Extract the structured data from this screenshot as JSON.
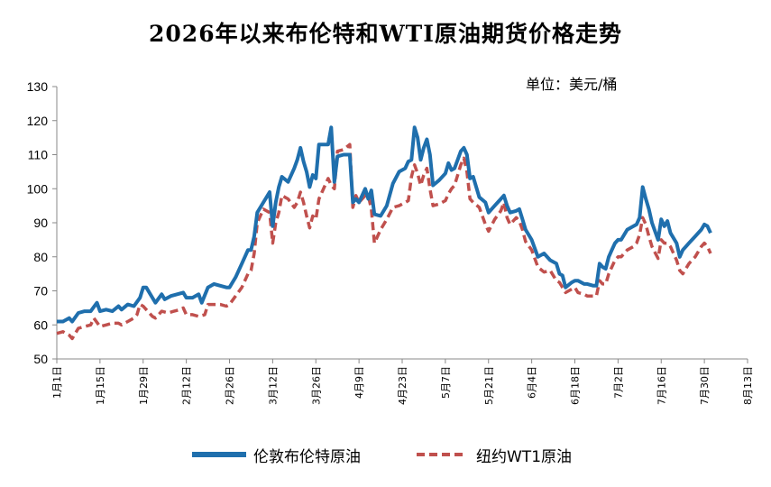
{
  "chart_data": {
    "type": "line",
    "title": "2026年以来布伦特和WTI原油期货价格走势",
    "unit": "单位：美元/桶",
    "ylim": [
      50,
      130
    ],
    "y_ticks": [
      50,
      60,
      70,
      80,
      90,
      100,
      110,
      120,
      130
    ],
    "x_ticks": [
      "1月1日",
      "1月15日",
      "1月29日",
      "2月12日",
      "2月26日",
      "3月12日",
      "3月26日",
      "4月9日",
      "4月23日",
      "5月7日",
      "5月21日",
      "6月4日",
      "6月18日",
      "7月2日",
      "7月16日",
      "7月30日",
      "8月13日"
    ],
    "x_tick_days": [
      0,
      14,
      28,
      42,
      56,
      70,
      84,
      98,
      112,
      126,
      140,
      154,
      168,
      182,
      196,
      210,
      224
    ],
    "x_max_day": 224,
    "legend_position": "bottom",
    "grid": false,
    "series": [
      {
        "name": "伦敦布伦特原油",
        "color": "#1f6fad",
        "style": "solid",
        "points": [
          [
            0,
            61
          ],
          [
            2,
            61
          ],
          [
            4,
            62
          ],
          [
            5,
            61
          ],
          [
            7,
            63.5
          ],
          [
            9,
            64
          ],
          [
            11,
            64
          ],
          [
            13,
            66.5
          ],
          [
            14,
            64
          ],
          [
            16,
            64.5
          ],
          [
            18,
            64
          ],
          [
            20,
            65.5
          ],
          [
            21,
            64.5
          ],
          [
            23,
            66
          ],
          [
            25,
            65.5
          ],
          [
            27,
            68
          ],
          [
            28,
            71
          ],
          [
            29,
            71
          ],
          [
            31,
            68
          ],
          [
            32,
            66.5
          ],
          [
            34,
            69
          ],
          [
            35,
            67.5
          ],
          [
            37,
            68.5
          ],
          [
            39,
            69
          ],
          [
            41,
            69.5
          ],
          [
            42,
            68
          ],
          [
            44,
            68
          ],
          [
            46,
            69
          ],
          [
            47,
            66.5
          ],
          [
            49,
            71
          ],
          [
            51,
            72
          ],
          [
            53,
            71.5
          ],
          [
            55,
            71
          ],
          [
            56,
            71
          ],
          [
            58,
            74
          ],
          [
            60,
            78
          ],
          [
            62,
            82
          ],
          [
            63,
            82
          ],
          [
            64,
            86
          ],
          [
            65,
            93
          ],
          [
            67,
            96
          ],
          [
            69,
            99
          ],
          [
            70,
            89
          ],
          [
            71,
            96
          ],
          [
            72,
            100.5
          ],
          [
            73,
            103.5
          ],
          [
            75,
            102
          ],
          [
            77,
            106
          ],
          [
            78,
            108.5
          ],
          [
            79,
            112
          ],
          [
            80,
            108
          ],
          [
            81,
            105
          ],
          [
            82,
            100.5
          ],
          [
            83,
            104
          ],
          [
            84,
            103
          ],
          [
            85,
            113
          ],
          [
            86,
            113
          ],
          [
            88,
            113
          ],
          [
            89,
            118
          ],
          [
            90,
            102
          ],
          [
            91,
            109.5
          ],
          [
            93,
            110
          ],
          [
            95,
            110
          ],
          [
            96,
            96
          ],
          [
            97,
            97
          ],
          [
            98,
            96
          ],
          [
            100,
            100
          ],
          [
            101,
            97
          ],
          [
            102,
            99.5
          ],
          [
            103,
            92.5
          ],
          [
            105,
            92
          ],
          [
            107,
            95
          ],
          [
            109,
            101.5
          ],
          [
            111,
            105
          ],
          [
            113,
            106
          ],
          [
            114,
            108
          ],
          [
            115,
            108.5
          ],
          [
            116,
            118
          ],
          [
            117,
            115
          ],
          [
            118,
            108.5
          ],
          [
            119,
            112
          ],
          [
            120,
            114.5
          ],
          [
            121,
            110
          ],
          [
            122,
            101
          ],
          [
            124,
            102.5
          ],
          [
            126,
            104.5
          ],
          [
            127,
            107.5
          ],
          [
            128,
            105.5
          ],
          [
            129,
            106
          ],
          [
            131,
            111
          ],
          [
            132,
            112
          ],
          [
            133,
            110
          ],
          [
            134,
            103
          ],
          [
            135,
            103.5
          ],
          [
            137,
            97.5
          ],
          [
            139,
            96
          ],
          [
            140,
            93
          ],
          [
            142,
            95
          ],
          [
            144,
            97
          ],
          [
            145,
            98
          ],
          [
            146,
            95
          ],
          [
            147,
            93
          ],
          [
            149,
            93.5
          ],
          [
            150,
            94
          ],
          [
            151,
            91
          ],
          [
            152,
            88
          ],
          [
            154,
            85
          ],
          [
            156,
            80
          ],
          [
            158,
            81
          ],
          [
            160,
            79
          ],
          [
            162,
            78
          ],
          [
            163,
            75
          ],
          [
            164,
            74.5
          ],
          [
            165,
            71
          ],
          [
            167,
            72.5
          ],
          [
            168,
            73
          ],
          [
            169,
            73
          ],
          [
            171,
            72
          ],
          [
            172,
            72
          ],
          [
            174,
            71.5
          ],
          [
            175,
            71.5
          ],
          [
            176,
            78
          ],
          [
            177,
            77
          ],
          [
            178,
            76.5
          ],
          [
            179,
            80
          ],
          [
            180,
            82
          ],
          [
            181,
            84
          ],
          [
            182,
            85
          ],
          [
            183,
            85
          ],
          [
            185,
            88
          ],
          [
            187,
            89
          ],
          [
            188,
            89.5
          ],
          [
            189,
            91.5
          ],
          [
            190,
            100.5
          ],
          [
            191,
            97
          ],
          [
            192,
            94
          ],
          [
            193,
            90
          ],
          [
            195,
            85
          ],
          [
            196,
            91
          ],
          [
            197,
            89
          ],
          [
            198,
            90.5
          ],
          [
            199,
            87
          ],
          [
            201,
            84
          ],
          [
            202,
            80
          ],
          [
            203,
            82
          ],
          [
            205,
            84
          ],
          [
            207,
            86
          ],
          [
            209,
            88
          ],
          [
            210,
            89.5
          ],
          [
            211,
            89
          ],
          [
            212,
            87
          ]
        ]
      },
      {
        "name": "纽约WT1原油",
        "color": "#c0504d",
        "style": "dashed",
        "points": [
          [
            0,
            57.5
          ],
          [
            2,
            58
          ],
          [
            4,
            57
          ],
          [
            5,
            56
          ],
          [
            7,
            59
          ],
          [
            9,
            59.5
          ],
          [
            11,
            60
          ],
          [
            12,
            62
          ],
          [
            14,
            59.5
          ],
          [
            16,
            60
          ],
          [
            18,
            60.5
          ],
          [
            20,
            60.5
          ],
          [
            21,
            60
          ],
          [
            23,
            61
          ],
          [
            25,
            62
          ],
          [
            26,
            63
          ],
          [
            27,
            66
          ],
          [
            28,
            65.5
          ],
          [
            29,
            64.5
          ],
          [
            31,
            62.5
          ],
          [
            32,
            62
          ],
          [
            34,
            64
          ],
          [
            36,
            63.5
          ],
          [
            38,
            64
          ],
          [
            40,
            64.5
          ],
          [
            41,
            65
          ],
          [
            42,
            63
          ],
          [
            44,
            63
          ],
          [
            46,
            62.5
          ],
          [
            48,
            63
          ],
          [
            49,
            66
          ],
          [
            51,
            66
          ],
          [
            53,
            66
          ],
          [
            55,
            65.5
          ],
          [
            56,
            66
          ],
          [
            58,
            68.5
          ],
          [
            60,
            71
          ],
          [
            62,
            75
          ],
          [
            63,
            76
          ],
          [
            64,
            81
          ],
          [
            65,
            90
          ],
          [
            67,
            94
          ],
          [
            69,
            93
          ],
          [
            70,
            84
          ],
          [
            71,
            90
          ],
          [
            72,
            93
          ],
          [
            73,
            98
          ],
          [
            75,
            97
          ],
          [
            77,
            94.5
          ],
          [
            78,
            96
          ],
          [
            79,
            99
          ],
          [
            80,
            96
          ],
          [
            81,
            92
          ],
          [
            82,
            88.5
          ],
          [
            83,
            92
          ],
          [
            84,
            91
          ],
          [
            85,
            97
          ],
          [
            86,
            99
          ],
          [
            88,
            103
          ],
          [
            89,
            101
          ],
          [
            90,
            100
          ],
          [
            91,
            111
          ],
          [
            93,
            111.5
          ],
          [
            95,
            113
          ],
          [
            96,
            94.5
          ],
          [
            97,
            98
          ],
          [
            98,
            96
          ],
          [
            100,
            98
          ],
          [
            101,
            98
          ],
          [
            102,
            94
          ],
          [
            103,
            84
          ],
          [
            105,
            88
          ],
          [
            107,
            91
          ],
          [
            109,
            94.5
          ],
          [
            111,
            95
          ],
          [
            113,
            96
          ],
          [
            114,
            96.5
          ],
          [
            115,
            103.5
          ],
          [
            116,
            107
          ],
          [
            117,
            104.5
          ],
          [
            118,
            101
          ],
          [
            119,
            104
          ],
          [
            120,
            106
          ],
          [
            121,
            100
          ],
          [
            122,
            95
          ],
          [
            124,
            95.5
          ],
          [
            126,
            96.5
          ],
          [
            127,
            98.5
          ],
          [
            128,
            100
          ],
          [
            129,
            101
          ],
          [
            131,
            107
          ],
          [
            132,
            109
          ],
          [
            133,
            105
          ],
          [
            134,
            97
          ],
          [
            135,
            96
          ],
          [
            137,
            94.5
          ],
          [
            139,
            89.5
          ],
          [
            140,
            87.5
          ],
          [
            142,
            91
          ],
          [
            144,
            93.5
          ],
          [
            145,
            96
          ],
          [
            146,
            91.5
          ],
          [
            147,
            89.5
          ],
          [
            149,
            91.5
          ],
          [
            150,
            90.5
          ],
          [
            151,
            88
          ],
          [
            152,
            84.5
          ],
          [
            154,
            82
          ],
          [
            156,
            77
          ],
          [
            158,
            75.5
          ],
          [
            160,
            76
          ],
          [
            162,
            73
          ],
          [
            163,
            72.5
          ],
          [
            164,
            71
          ],
          [
            165,
            69.5
          ],
          [
            167,
            70.5
          ],
          [
            168,
            71
          ],
          [
            169,
            69.5
          ],
          [
            171,
            69
          ],
          [
            172,
            68.5
          ],
          [
            174,
            68.5
          ],
          [
            175,
            68.5
          ],
          [
            176,
            73
          ],
          [
            177,
            72
          ],
          [
            178,
            72
          ],
          [
            179,
            75
          ],
          [
            180,
            77
          ],
          [
            181,
            79
          ],
          [
            182,
            80
          ],
          [
            183,
            80
          ],
          [
            185,
            82
          ],
          [
            187,
            83
          ],
          [
            188,
            84
          ],
          [
            189,
            86.5
          ],
          [
            190,
            91.5
          ],
          [
            191,
            89.5
          ],
          [
            192,
            86
          ],
          [
            193,
            83
          ],
          [
            195,
            79.5
          ],
          [
            196,
            85
          ],
          [
            197,
            84
          ],
          [
            198,
            84
          ],
          [
            199,
            83
          ],
          [
            201,
            79
          ],
          [
            202,
            76
          ],
          [
            203,
            75
          ],
          [
            205,
            78
          ],
          [
            207,
            80
          ],
          [
            209,
            83
          ],
          [
            210,
            84
          ],
          [
            211,
            83
          ],
          [
            212,
            81
          ]
        ]
      }
    ]
  }
}
